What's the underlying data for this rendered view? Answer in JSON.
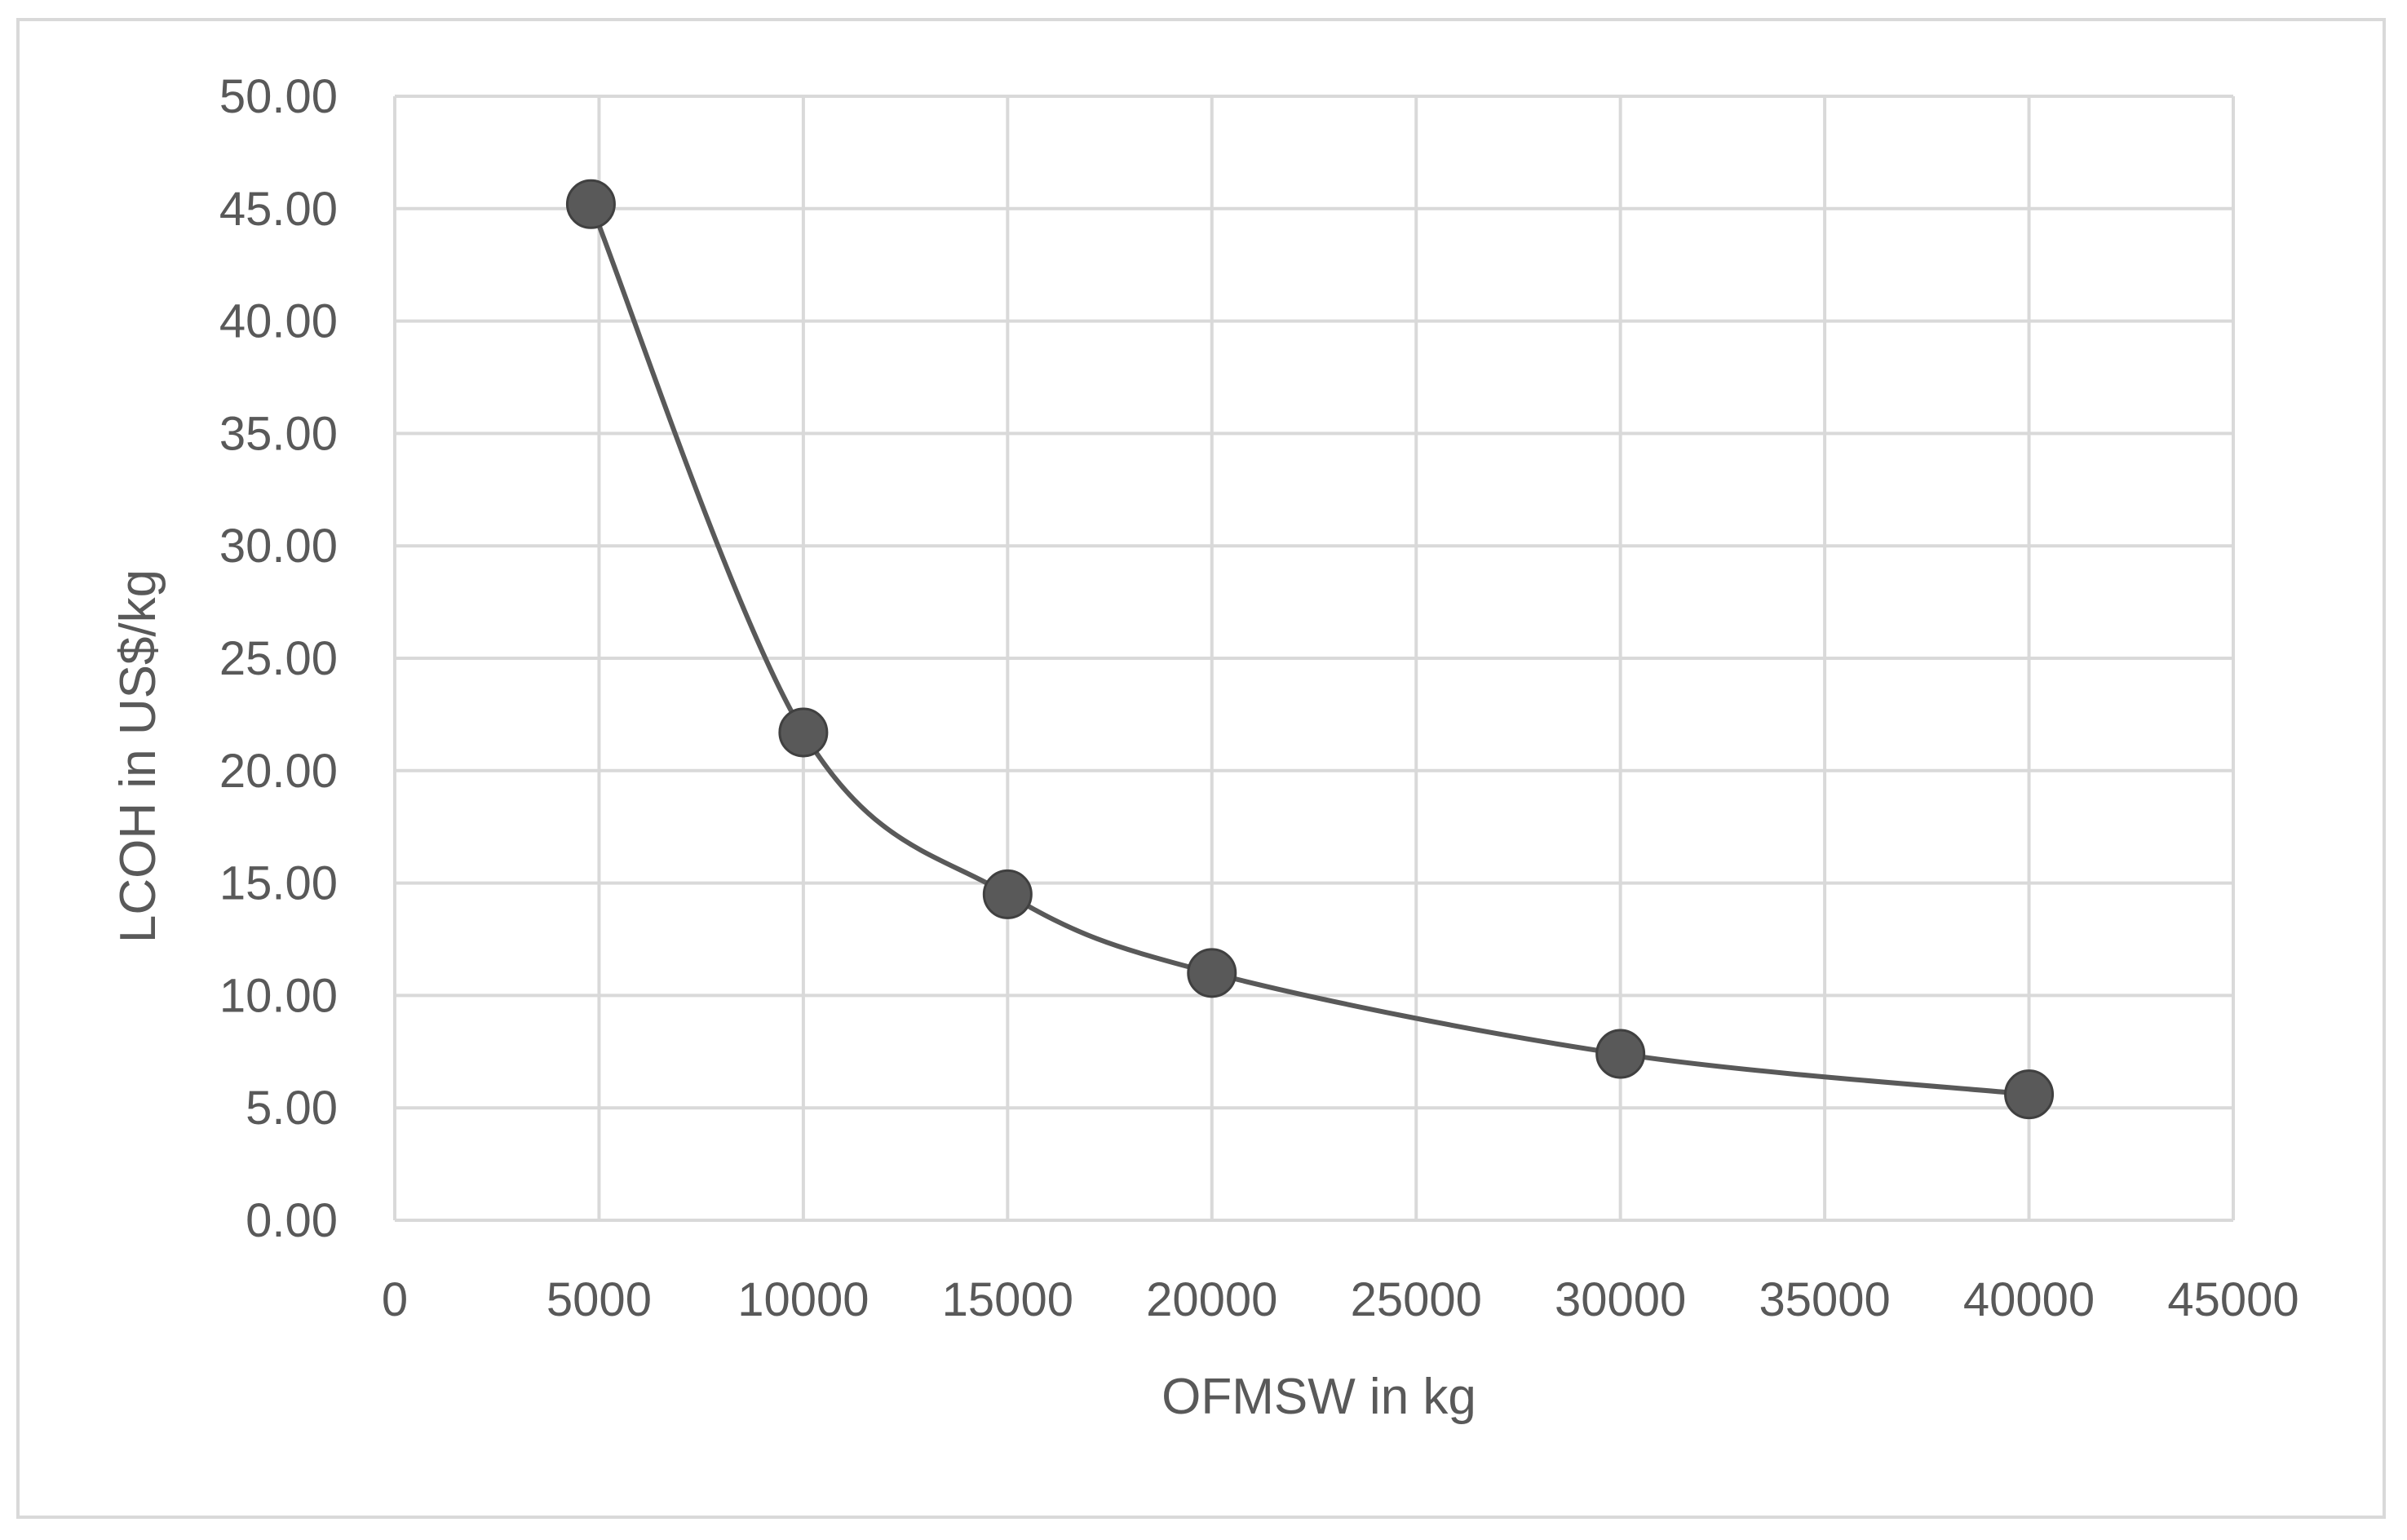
{
  "chart_data": {
    "type": "scatter",
    "title": "",
    "xlabel": "OFMSW in kg",
    "ylabel": "LCOH in US$/kg",
    "xlim": [
      0,
      45000
    ],
    "ylim": [
      0,
      50
    ],
    "x_ticks": [
      "0",
      "5000",
      "10000",
      "15000",
      "20000",
      "25000",
      "30000",
      "35000",
      "40000",
      "45000"
    ],
    "y_ticks": [
      "0.00",
      "5.00",
      "10.00",
      "15.00",
      "20.00",
      "25.00",
      "30.00",
      "35.00",
      "40.00",
      "45.00",
      "50.00"
    ],
    "grid": true,
    "legend": "none",
    "smooth_line": true,
    "series": [
      {
        "x": [
          4800,
          10000,
          15000,
          20000,
          30000,
          40000
        ],
        "y": [
          45.2,
          21.7,
          14.5,
          11.0,
          7.4,
          5.6
        ],
        "color": "#595959"
      }
    ]
  }
}
